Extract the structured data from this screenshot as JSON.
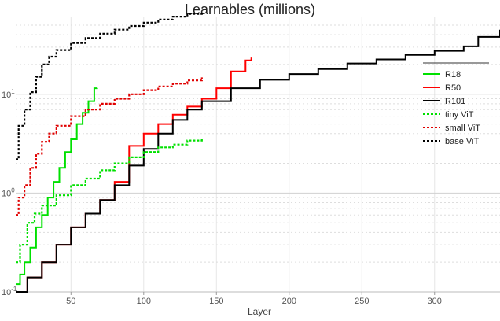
{
  "chart_data": {
    "type": "line",
    "title": "Learnables (millions)",
    "xlabel": "Layer",
    "ylabel": "",
    "xlim": [
      12,
      345
    ],
    "ylim": [
      0.1,
      60
    ],
    "yscale": "log",
    "grid": true,
    "legend_position": "right",
    "x_ticks": [
      50,
      100,
      150,
      200,
      250,
      300
    ],
    "x_tick_labels": [
      "50",
      "100",
      "150",
      "200",
      "250",
      "300"
    ],
    "y_ticks": [
      0.1,
      1,
      10
    ],
    "y_tick_labels": [
      "10^-1",
      "10^0",
      "10^1"
    ],
    "series": [
      {
        "name": "R18",
        "color": "#00e000",
        "style": "solid",
        "x": [
          12,
          15,
          18,
          22,
          26,
          30,
          34,
          38,
          42,
          46,
          50,
          54,
          58,
          62,
          66,
          68
        ],
        "y": [
          0.12,
          0.15,
          0.2,
          0.28,
          0.45,
          0.6,
          0.9,
          1.3,
          1.8,
          2.6,
          3.5,
          5.0,
          6.5,
          8.5,
          11.5,
          11.6
        ]
      },
      {
        "name": "R50",
        "color": "#ff0000",
        "style": "solid",
        "x": [
          12,
          20,
          30,
          40,
          50,
          60,
          70,
          80,
          90,
          100,
          110,
          120,
          130,
          140,
          150,
          160,
          170,
          174
        ],
        "y": [
          0.1,
          0.14,
          0.2,
          0.3,
          0.45,
          0.62,
          0.85,
          1.3,
          3.0,
          4.0,
          5.0,
          6.2,
          7.5,
          9.0,
          11.5,
          17.0,
          22.0,
          23.5
        ]
      },
      {
        "name": "R101",
        "color": "#000000",
        "style": "solid",
        "x": [
          12,
          20,
          30,
          40,
          50,
          60,
          70,
          80,
          90,
          100,
          110,
          120,
          130,
          140,
          160,
          180,
          200,
          220,
          240,
          260,
          280,
          300,
          320,
          330,
          345
        ],
        "y": [
          0.1,
          0.14,
          0.2,
          0.3,
          0.45,
          0.62,
          0.85,
          1.2,
          1.9,
          2.8,
          4.0,
          5.5,
          7.0,
          8.5,
          11.5,
          14.0,
          16.0,
          18.0,
          20.5,
          22.5,
          25.0,
          27.5,
          30.5,
          38.0,
          45.0
        ]
      },
      {
        "name": "tiny ViT",
        "color": "#00e000",
        "style": "dashed",
        "x": [
          12,
          15,
          20,
          25,
          30,
          40,
          50,
          60,
          70,
          80,
          90,
          100,
          110,
          120,
          130,
          140
        ],
        "y": [
          0.2,
          0.3,
          0.5,
          0.62,
          0.75,
          0.95,
          1.2,
          1.4,
          1.7,
          2.0,
          2.3,
          2.6,
          2.9,
          3.1,
          3.4,
          3.6
        ]
      },
      {
        "name": "small ViT",
        "color": "#e00000",
        "style": "dashed",
        "x": [
          12,
          14,
          18,
          22,
          26,
          30,
          35,
          40,
          50,
          60,
          70,
          80,
          90,
          100,
          110,
          120,
          130,
          140
        ],
        "y": [
          0.6,
          0.9,
          1.2,
          1.8,
          2.5,
          3.3,
          4.0,
          4.8,
          6.0,
          7.0,
          8.0,
          9.0,
          10.0,
          11.0,
          12.0,
          12.8,
          13.8,
          14.8
        ]
      },
      {
        "name": "base ViT",
        "color": "#000000",
        "style": "dashed",
        "x": [
          12,
          14,
          18,
          22,
          26,
          30,
          35,
          40,
          50,
          60,
          70,
          80,
          90,
          100,
          110,
          120,
          130,
          140
        ],
        "y": [
          2.2,
          4.8,
          7.0,
          10.5,
          15.0,
          20.0,
          24.0,
          28.0,
          33.0,
          37.0,
          41.0,
          45.0,
          49.0,
          53.0,
          57.0,
          61.0,
          65.0,
          69.0
        ]
      }
    ]
  }
}
